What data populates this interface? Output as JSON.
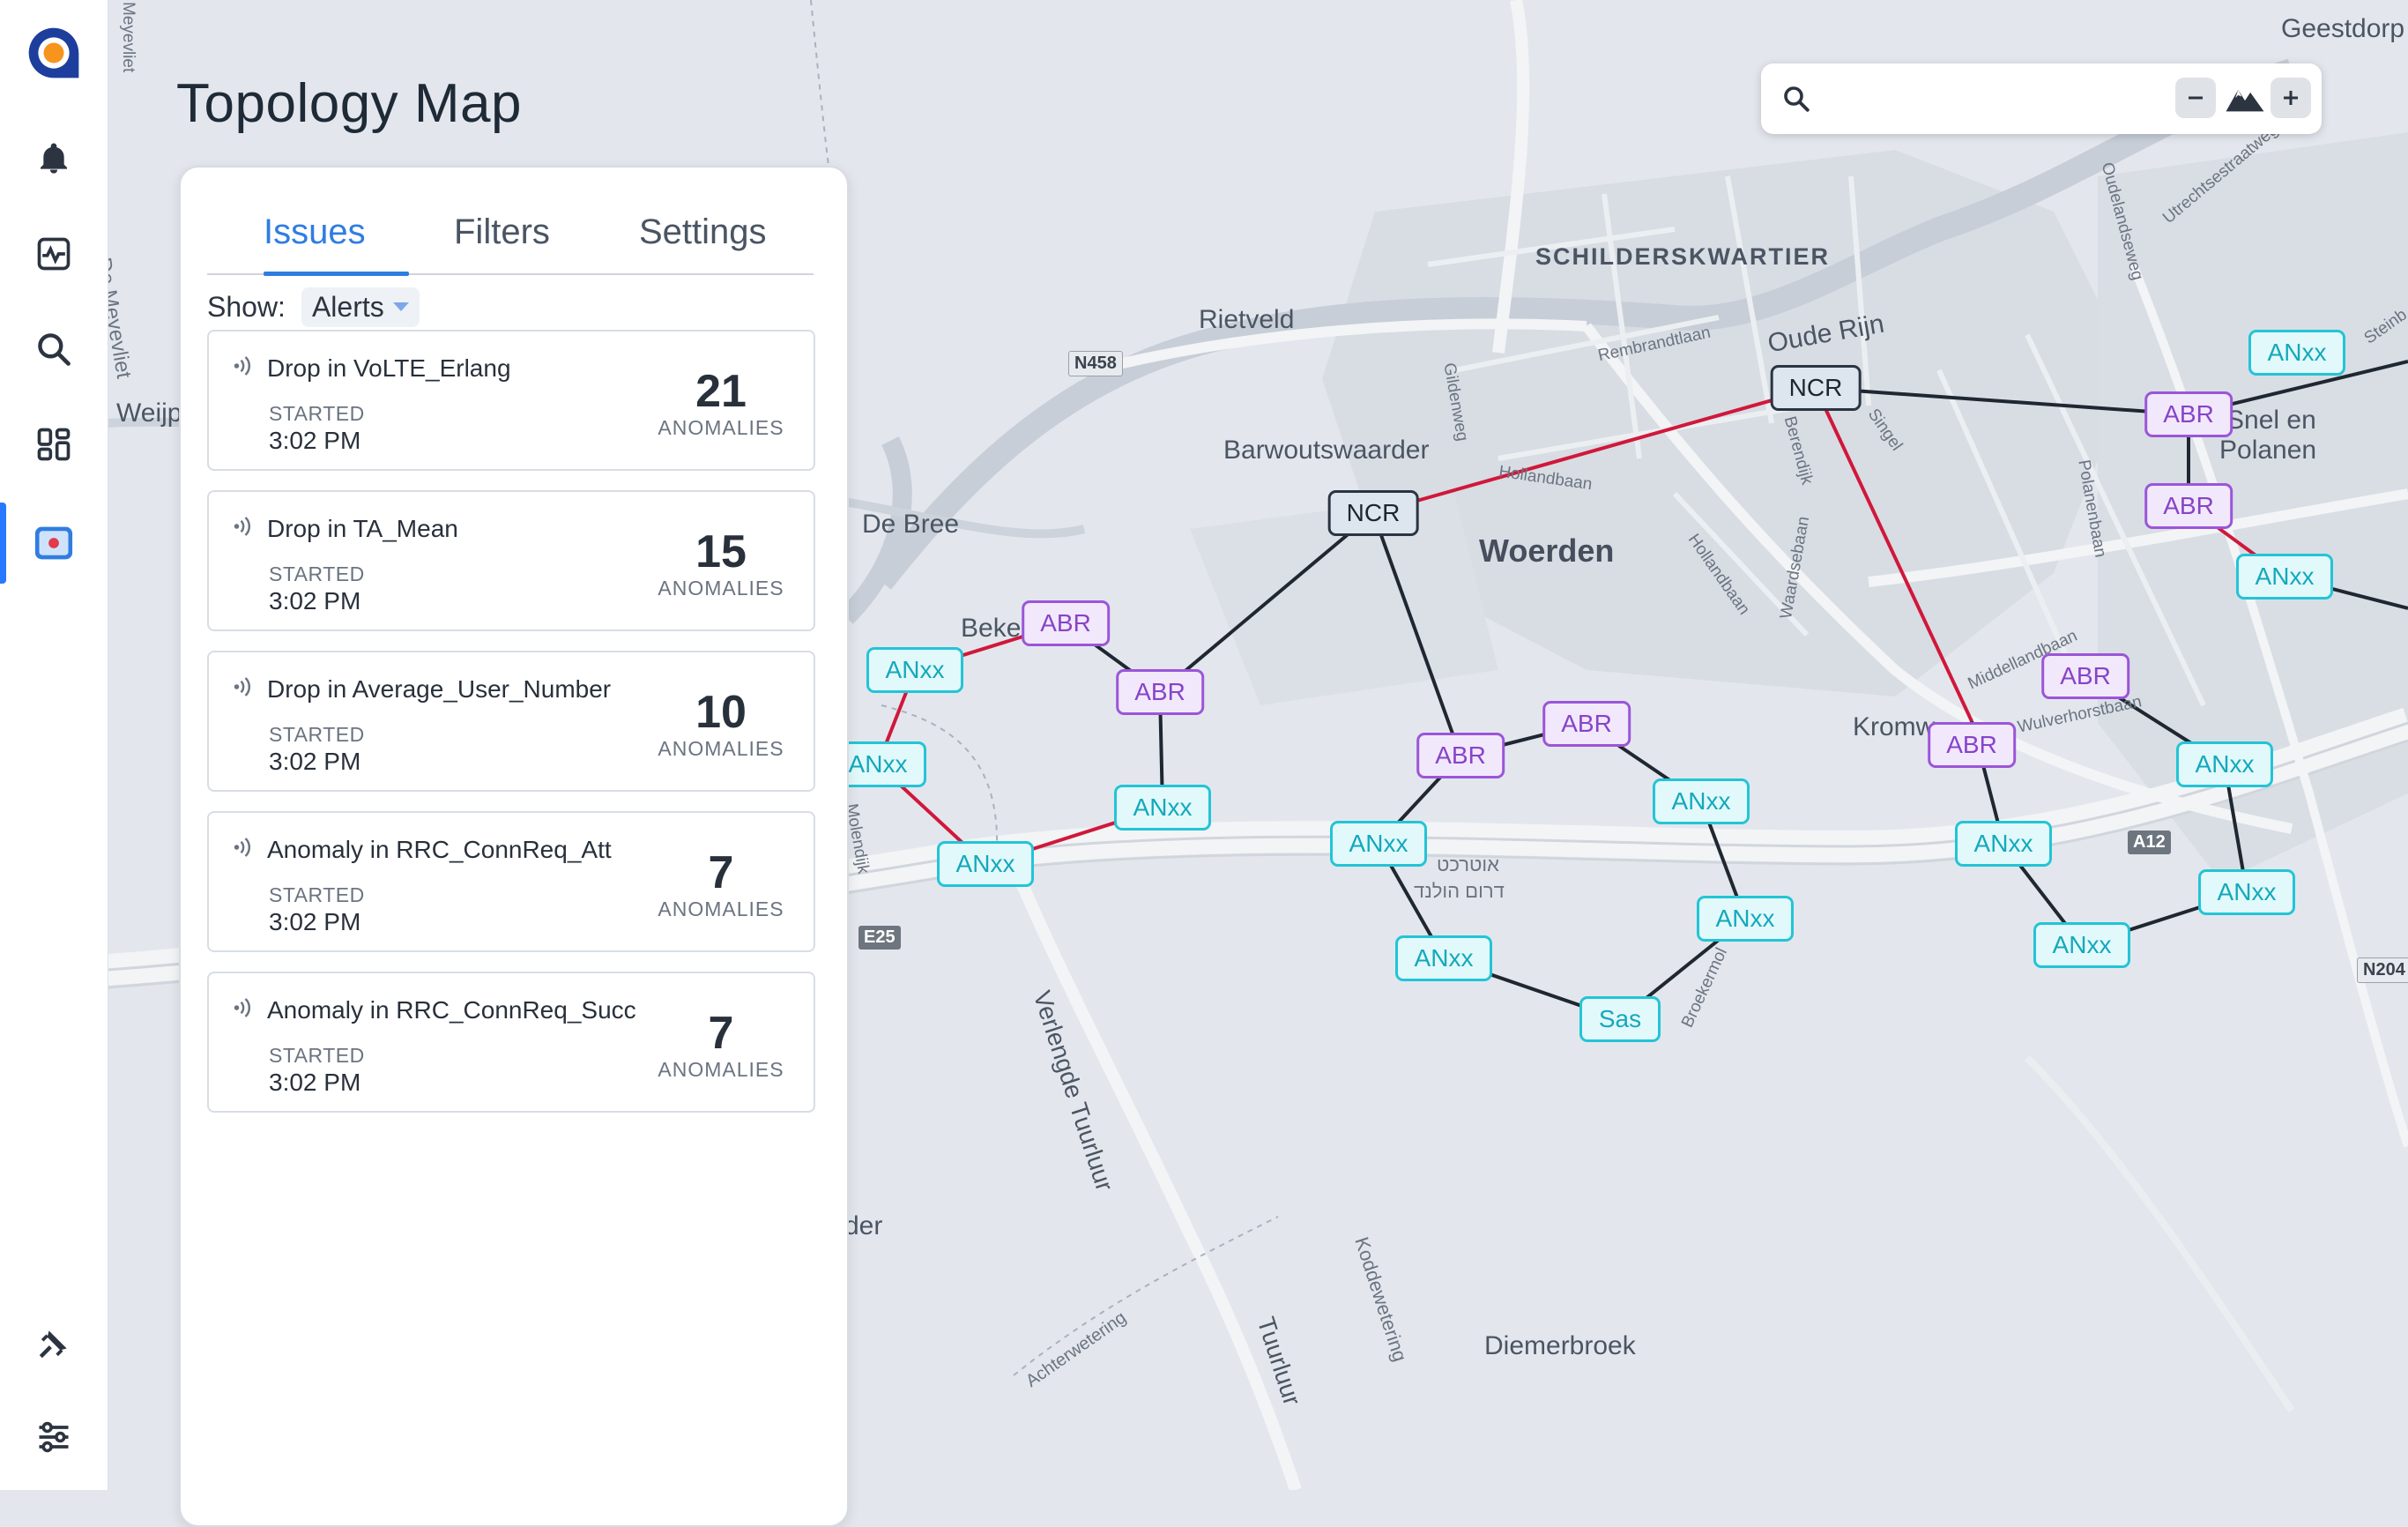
{
  "app": {
    "title": "Topology Map"
  },
  "sidebar": {
    "items": [
      {
        "icon": "logo-icon"
      },
      {
        "icon": "bell-icon"
      },
      {
        "icon": "activity-icon"
      },
      {
        "icon": "search-icon"
      },
      {
        "icon": "dashboard-icon"
      },
      {
        "icon": "map-icon",
        "active": true
      },
      {
        "icon": "satellite-icon"
      },
      {
        "icon": "sliders-icon"
      }
    ],
    "accent": "#2979ff"
  },
  "panel": {
    "tabs": [
      {
        "label": "Issues",
        "active": true
      },
      {
        "label": "Filters"
      },
      {
        "label": "Settings"
      }
    ],
    "show_label": "Show:",
    "show_value": "Alerts",
    "issues": [
      {
        "title": "Drop in VoLTE_Erlang",
        "started_label": "STARTED",
        "time": "3:02 PM",
        "count": "21",
        "count_label": "ANOMALIES"
      },
      {
        "title": "Drop in TA_Mean",
        "started_label": "STARTED",
        "time": "3:02 PM",
        "count": "15",
        "count_label": "ANOMALIES"
      },
      {
        "title": "Drop in Average_User_Number",
        "started_label": "STARTED",
        "time": "3:02 PM",
        "count": "10",
        "count_label": "ANOMALIES"
      },
      {
        "title": "Anomaly in RRC_ConnReq_Att",
        "started_label": "STARTED",
        "time": "3:02 PM",
        "count": "7",
        "count_label": "ANOMALIES"
      },
      {
        "title": "Anomaly in RRC_ConnReq_Succ",
        "started_label": "STARTED",
        "time": "3:02 PM",
        "count": "7",
        "count_label": "ANOMALIES"
      }
    ]
  },
  "search": {
    "placeholder": ""
  },
  "map": {
    "labels": {
      "geestdorp": "Geestdorp",
      "schilderskwartier": "SCHILDERSKWARTIER",
      "rietveld": "Rietveld",
      "oude_rijn": "Oude Rijn",
      "barwoutswaarder": "Barwoutswaarder",
      "woerden": "Woerden",
      "de_bree": "De Bree",
      "beke": "Beke",
      "snel_en_polanen_1": "Snel en",
      "snel_en_polanen_2": "Polanen",
      "kromw": "Kromw",
      "weijp": "Weijp",
      "de_meyevliet": "De Meyevliet",
      "meyevliet_top": "Meyevliet",
      "verlengde_tuurluur": "Verlengde Tuurluur",
      "tuurluur": "Tuurluur",
      "diemerbroek": "Diemerbroek",
      "koddewetering": "Koddewetering",
      "achterwetering": "Achterwetering",
      "der": "der",
      "rembrandtlaan": "Rembrandtlaan",
      "gildenweg": "Gildenweg",
      "hollandbaan": "Hollandbaan",
      "hollandbaan2": "Hollandbaan",
      "waardsebaan": "Waardsebaan",
      "berendijk": "Berendijk",
      "singel": "Singel",
      "polanenbaan": "Polanenbaan",
      "middellandbaan": "Middellandbaan",
      "wulverhorstbaan": "Wulverhorstbaan",
      "oudelandseweg": "Oudelandseweg",
      "utrechtsestraatweg": "Utrechtsestraatweg",
      "broekermolen": "Broekermol",
      "hebrew1": "אוטרכט",
      "hebrew2": "דרום הולנד",
      "steinb": "Steinb",
      "molendijk": "Molendijk"
    },
    "shields": {
      "n458": "N458",
      "a12": "A12",
      "e25": "E25",
      "n204": "N204"
    },
    "nodes": [
      {
        "type": "ncr",
        "label": "NCR"
      },
      {
        "type": "ncr",
        "label": "NCR"
      },
      {
        "type": "abr",
        "label": "ABR"
      },
      {
        "type": "abr",
        "label": "ABR"
      },
      {
        "type": "abr",
        "label": "ABR"
      },
      {
        "type": "abr",
        "label": "ABR"
      },
      {
        "type": "abr",
        "label": "ABR"
      },
      {
        "type": "abr",
        "label": "ABR"
      },
      {
        "type": "abr",
        "label": "ABR"
      },
      {
        "type": "abr",
        "label": "ABR"
      },
      {
        "type": "anxx",
        "label": "ANxx"
      },
      {
        "type": "anxx",
        "label": "ANxx"
      },
      {
        "type": "anxx",
        "label": "ANxx"
      },
      {
        "type": "anxx",
        "label": "ANxx"
      },
      {
        "type": "anxx",
        "label": "ANxx"
      },
      {
        "type": "anxx",
        "label": "ANxx"
      },
      {
        "type": "anxx",
        "label": "ANxx"
      },
      {
        "type": "anxx",
        "label": "ANxx"
      },
      {
        "type": "anxx",
        "label": "ANxx"
      },
      {
        "type": "anxx",
        "label": "ANxx"
      },
      {
        "type": "anxx",
        "label": "ANxx"
      },
      {
        "type": "anxx",
        "label": "ANxx"
      },
      {
        "type": "anxx",
        "label": "ANxx"
      },
      {
        "type": "anxx",
        "label": "ANxx"
      },
      {
        "type": "sas",
        "label": "Sas"
      }
    ],
    "colors": {
      "link_normal": "#1f2731",
      "link_alert": "#d0183a",
      "anxx": "#23c4d6",
      "abr": "#9b55d9",
      "ncr": "#2a3442"
    }
  }
}
